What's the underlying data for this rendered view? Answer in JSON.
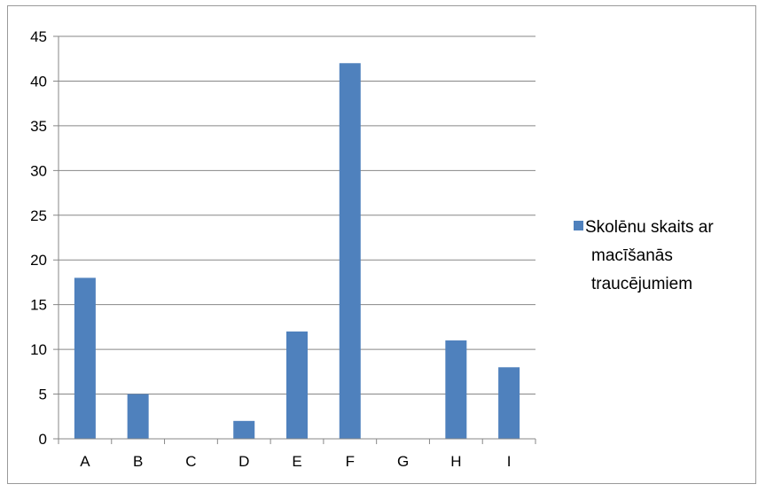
{
  "chart_data": {
    "type": "bar",
    "categories": [
      "A",
      "B",
      "C",
      "D",
      "E",
      "F",
      "G",
      "H",
      "I"
    ],
    "series": [
      {
        "name": "Skolēnu skaits ar macīšanās traucējumiem",
        "values": [
          18,
          5,
          0,
          2,
          12,
          42,
          0,
          11,
          8
        ],
        "color": "#4f81bd"
      }
    ],
    "y_ticks": [
      "0",
      "5",
      "10",
      "15",
      "20",
      "25",
      "30",
      "35",
      "40",
      "45"
    ],
    "ylim": [
      0,
      45
    ],
    "grid": true,
    "legend_position": "right",
    "legend_lines": [
      "Skolēnu skaits ar",
      "macīšanās",
      "traucējumiem"
    ]
  }
}
